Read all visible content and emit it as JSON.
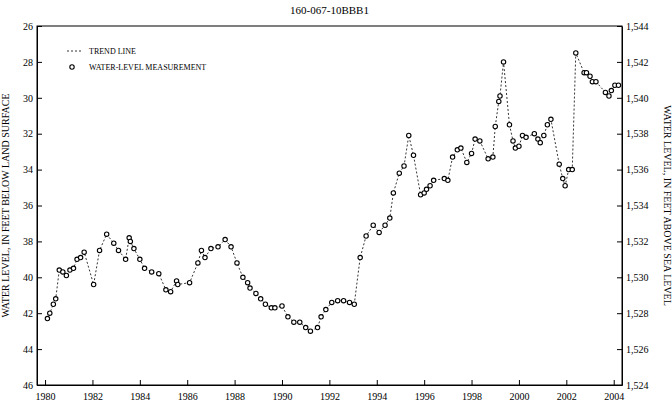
{
  "chart_data": {
    "type": "line",
    "title": "160-067-10BBB1",
    "ylabel": "WATER LEVEL, IN FEET BELOW LAND SURFACE",
    "y2label": "WATER LEVEL, IN FEET ABOVE SEA LEVEL",
    "x": [
      1980.1,
      1980.2,
      1980.35,
      1980.45,
      1980.6,
      1980.75,
      1980.9,
      1981.05,
      1981.2,
      1981.35,
      1981.5,
      1981.65,
      1982.05,
      1982.3,
      1982.6,
      1982.9,
      1983.1,
      1983.4,
      1983.55,
      1983.6,
      1983.75,
      1984.0,
      1984.2,
      1984.5,
      1984.8,
      1985.1,
      1985.3,
      1985.55,
      1985.6,
      1986.1,
      1986.45,
      1986.6,
      1986.75,
      1987.0,
      1987.3,
      1987.6,
      1987.85,
      1988.1,
      1988.35,
      1988.55,
      1988.65,
      1988.9,
      1989.1,
      1989.3,
      1989.55,
      1989.7,
      1990.0,
      1990.25,
      1990.5,
      1990.75,
      1991.0,
      1991.2,
      1991.5,
      1991.65,
      1991.85,
      1992.1,
      1992.35,
      1992.6,
      1992.85,
      1993.05,
      1993.3,
      1993.55,
      1993.85,
      1994.1,
      1994.35,
      1994.55,
      1994.7,
      1994.95,
      1995.15,
      1995.35,
      1995.55,
      1995.85,
      1996.0,
      1996.1,
      1996.25,
      1996.4,
      1996.85,
      1997.0,
      1997.2,
      1997.4,
      1997.55,
      1997.8,
      1998.0,
      1998.15,
      1998.35,
      1998.7,
      1998.9,
      1999.0,
      1999.15,
      1999.2,
      1999.35,
      1999.6,
      1999.75,
      1999.85,
      2000.0,
      2000.15,
      2000.3,
      2000.65,
      2000.8,
      2000.9,
      2001.05,
      2001.2,
      2001.35,
      2001.7,
      2001.85,
      2001.95,
      2002.1,
      2002.25,
      2002.4,
      2002.75,
      2002.85,
      2003.0,
      2003.1,
      2003.25,
      2003.65,
      2003.8,
      2003.9,
      2004.05,
      2004.2
    ],
    "series": [
      {
        "name": "TREND LINE",
        "type": "line",
        "line_style": "dashed",
        "color": "#000000",
        "values": [
          42.3,
          42.0,
          41.5,
          41.2,
          39.6,
          39.7,
          39.9,
          39.6,
          39.5,
          39.0,
          38.9,
          38.6,
          40.4,
          38.5,
          37.6,
          38.1,
          38.5,
          39.0,
          37.8,
          38.0,
          38.4,
          39.0,
          39.5,
          39.7,
          39.8,
          40.7,
          40.8,
          40.2,
          40.4,
          40.3,
          39.2,
          38.5,
          38.9,
          38.4,
          38.3,
          37.9,
          38.3,
          39.2,
          40.0,
          40.3,
          40.6,
          40.9,
          41.2,
          41.5,
          41.7,
          41.7,
          41.6,
          42.2,
          42.5,
          42.5,
          42.8,
          43.0,
          42.8,
          42.2,
          41.8,
          41.4,
          41.3,
          41.3,
          41.4,
          41.5,
          38.9,
          37.7,
          37.1,
          37.5,
          37.1,
          36.7,
          35.3,
          34.2,
          33.8,
          32.1,
          33.2,
          35.4,
          35.3,
          35.1,
          34.9,
          34.6,
          34.5,
          34.6,
          33.3,
          32.9,
          32.8,
          33.6,
          33.1,
          32.3,
          32.4,
          33.4,
          33.3,
          31.6,
          30.2,
          29.9,
          28.0,
          31.5,
          32.4,
          32.8,
          32.7,
          32.1,
          32.2,
          32.0,
          32.3,
          32.5,
          32.1,
          31.5,
          31.2,
          33.7,
          34.5,
          34.9,
          34.0,
          34.0,
          27.5,
          28.6,
          28.6,
          28.8,
          29.1,
          29.1,
          29.7,
          29.9,
          29.6,
          29.3,
          29.3
        ]
      },
      {
        "name": "WATER-LEVEL MEASUREMENT",
        "type": "scatter",
        "marker": "circle",
        "color": "#000000",
        "values": [
          42.3,
          42.0,
          41.5,
          41.2,
          39.6,
          39.7,
          39.9,
          39.6,
          39.5,
          39.0,
          38.9,
          38.6,
          40.4,
          38.5,
          37.6,
          38.1,
          38.5,
          39.0,
          37.8,
          38.0,
          38.4,
          39.0,
          39.5,
          39.7,
          39.8,
          40.7,
          40.8,
          40.2,
          40.4,
          40.3,
          39.2,
          38.5,
          38.9,
          38.4,
          38.3,
          37.9,
          38.3,
          39.2,
          40.0,
          40.3,
          40.6,
          40.9,
          41.2,
          41.5,
          41.7,
          41.7,
          41.6,
          42.2,
          42.5,
          42.5,
          42.8,
          43.0,
          42.8,
          42.2,
          41.8,
          41.4,
          41.3,
          41.3,
          41.4,
          41.5,
          38.9,
          37.7,
          37.1,
          37.5,
          37.1,
          36.7,
          35.3,
          34.2,
          33.8,
          32.1,
          33.2,
          35.4,
          35.3,
          35.1,
          34.9,
          34.6,
          34.5,
          34.6,
          33.3,
          32.9,
          32.8,
          33.6,
          33.1,
          32.3,
          32.4,
          33.4,
          33.3,
          31.6,
          30.2,
          29.9,
          28.0,
          31.5,
          32.4,
          32.8,
          32.7,
          32.1,
          32.2,
          32.0,
          32.3,
          32.5,
          32.1,
          31.5,
          31.2,
          33.7,
          34.5,
          34.9,
          34.0,
          34.0,
          27.5,
          28.6,
          28.6,
          28.8,
          29.1,
          29.1,
          29.7,
          29.9,
          29.6,
          29.3,
          29.3
        ]
      }
    ],
    "xlim": [
      1979.66,
      2004.35
    ],
    "xticks": [
      1980,
      1982,
      1984,
      1986,
      1988,
      1990,
      1992,
      1994,
      1996,
      1998,
      2000,
      2002,
      2004
    ],
    "ylim": [
      26,
      46
    ],
    "yticks": [
      26,
      28,
      30,
      32,
      34,
      36,
      38,
      40,
      42,
      44,
      46
    ],
    "y2lim": [
      1524,
      1544
    ],
    "y2ticks": [
      {
        "value": 1524,
        "label": "1,524"
      },
      {
        "value": 1526,
        "label": "1,526"
      },
      {
        "value": 1528,
        "label": "1,528"
      },
      {
        "value": 1530,
        "label": "1,530"
      },
      {
        "value": 1532,
        "label": "1,532"
      },
      {
        "value": 1534,
        "label": "1,534"
      },
      {
        "value": 1536,
        "label": "1,536"
      },
      {
        "value": 1538,
        "label": "1,538"
      },
      {
        "value": 1540,
        "label": "1,540"
      },
      {
        "value": 1542,
        "label": "1,542"
      },
      {
        "value": 1544,
        "label": "1,544"
      }
    ],
    "grid": false,
    "legend": "upper left"
  }
}
